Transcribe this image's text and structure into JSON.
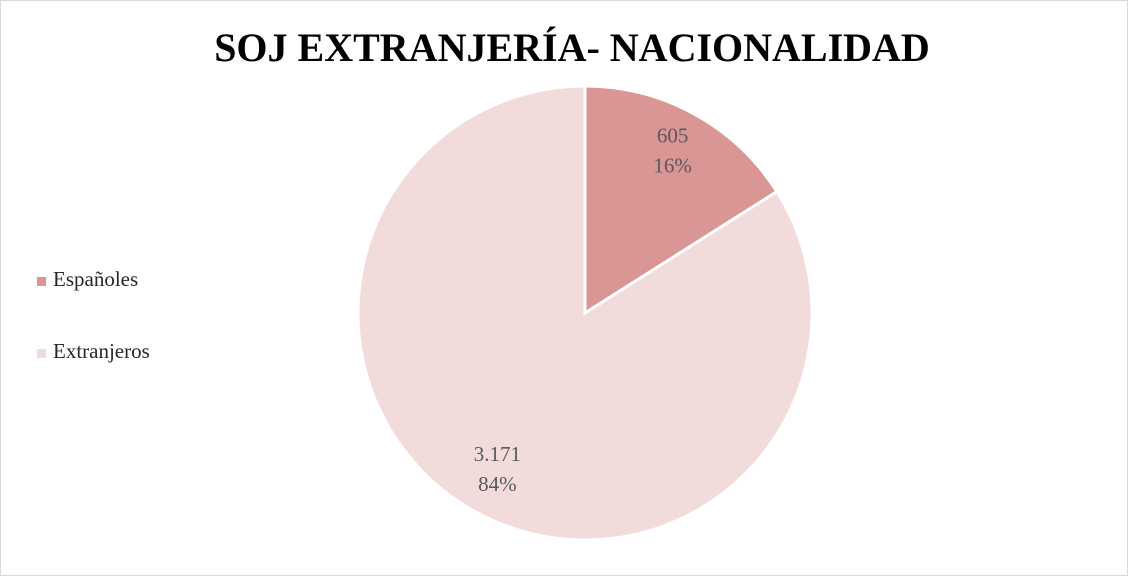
{
  "chart_data": {
    "type": "pie",
    "title": "SOJ EXTRANJERÍA- NACIONALIDAD",
    "categories": [
      "Españoles",
      "Extranjeros"
    ],
    "values": [
      605,
      3171
    ],
    "value_labels": [
      "605",
      "3.171"
    ],
    "percents": [
      16,
      84
    ],
    "percent_labels": [
      "16%",
      "84%"
    ],
    "colors": [
      "#d99694",
      "#f2dcdb"
    ],
    "legend": "left"
  }
}
